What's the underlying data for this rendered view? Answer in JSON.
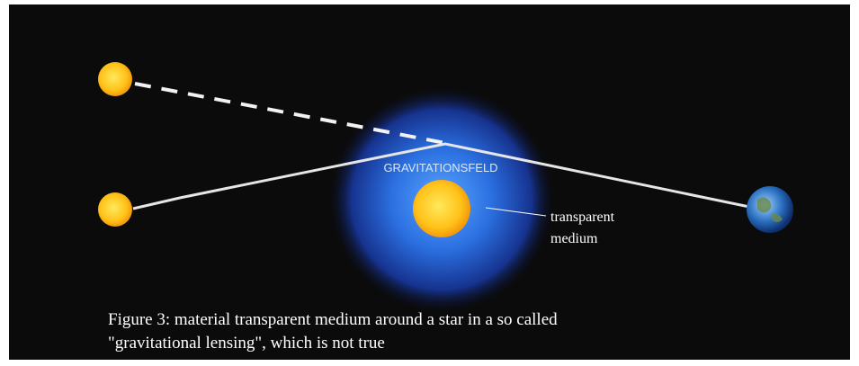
{
  "diagram": {
    "field_label": "GRAVITATIONSFELD",
    "annotation": [
      "transparent",
      "medium"
    ],
    "caption": [
      "Figure 3: material transparent medium around a star in a so called",
      "\"gravitational lensing\", which is not true"
    ]
  }
}
